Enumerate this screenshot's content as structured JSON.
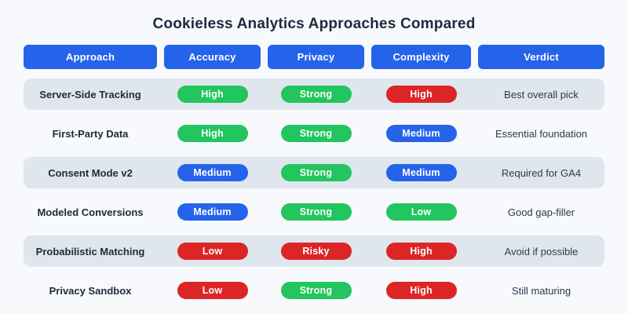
{
  "title": "Cookieless Analytics Approaches Compared",
  "columns": [
    "Approach",
    "Accuracy",
    "Privacy",
    "Complexity",
    "Verdict"
  ],
  "colors": {
    "background": "#f7f9fc",
    "title_text": "#1e2a3e",
    "header_button": "#2563eb",
    "row_stripe": "#e0e6ee",
    "pill_green": "#22c55e",
    "pill_blue": "#2563eb",
    "pill_red": "#dc2626"
  },
  "rows": [
    {
      "approach": "Server-Side Tracking",
      "accuracy": {
        "label": "High",
        "tone": "green"
      },
      "privacy": {
        "label": "Strong",
        "tone": "green"
      },
      "complexity": {
        "label": "High",
        "tone": "red"
      },
      "verdict": "Best overall pick"
    },
    {
      "approach": "First-Party Data",
      "accuracy": {
        "label": "High",
        "tone": "green"
      },
      "privacy": {
        "label": "Strong",
        "tone": "green"
      },
      "complexity": {
        "label": "Medium",
        "tone": "blue"
      },
      "verdict": "Essential foundation"
    },
    {
      "approach": "Consent Mode v2",
      "accuracy": {
        "label": "Medium",
        "tone": "blue"
      },
      "privacy": {
        "label": "Strong",
        "tone": "green"
      },
      "complexity": {
        "label": "Medium",
        "tone": "blue"
      },
      "verdict": "Required for GA4"
    },
    {
      "approach": "Modeled Conversions",
      "accuracy": {
        "label": "Medium",
        "tone": "blue"
      },
      "privacy": {
        "label": "Strong",
        "tone": "green"
      },
      "complexity": {
        "label": "Low",
        "tone": "green"
      },
      "verdict": "Good gap-filler"
    },
    {
      "approach": "Probabilistic Matching",
      "accuracy": {
        "label": "Low",
        "tone": "red"
      },
      "privacy": {
        "label": "Risky",
        "tone": "red"
      },
      "complexity": {
        "label": "High",
        "tone": "red"
      },
      "verdict": "Avoid if possible"
    },
    {
      "approach": "Privacy Sandbox",
      "accuracy": {
        "label": "Low",
        "tone": "red"
      },
      "privacy": {
        "label": "Strong",
        "tone": "green"
      },
      "complexity": {
        "label": "High",
        "tone": "red"
      },
      "verdict": "Still maturing"
    }
  ],
  "chart_data": {
    "type": "table",
    "title": "Cookieless Analytics Approaches Compared",
    "columns": [
      "Approach",
      "Accuracy",
      "Privacy",
      "Complexity",
      "Verdict"
    ],
    "rows": [
      [
        "Server-Side Tracking",
        "High",
        "Strong",
        "High",
        "Best overall pick"
      ],
      [
        "First-Party Data",
        "High",
        "Strong",
        "Medium",
        "Essential foundation"
      ],
      [
        "Consent Mode v2",
        "Medium",
        "Strong",
        "Medium",
        "Required for GA4"
      ],
      [
        "Modeled Conversions",
        "Medium",
        "Strong",
        "Low",
        "Good gap-filler"
      ],
      [
        "Probabilistic Matching",
        "Low",
        "Risky",
        "High",
        "Avoid if possible"
      ],
      [
        "Privacy Sandbox",
        "Low",
        "Strong",
        "High",
        "Still maturing"
      ]
    ],
    "cell_color_coding": {
      "green": [
        "High (positive)",
        "Strong",
        "Low (complexity)"
      ],
      "blue": [
        "Medium"
      ],
      "red": [
        "High (complexity)",
        "Low (accuracy)",
        "Risky"
      ]
    },
    "layout": "striped comparison matrix, stripes on rows 1/3/5"
  }
}
